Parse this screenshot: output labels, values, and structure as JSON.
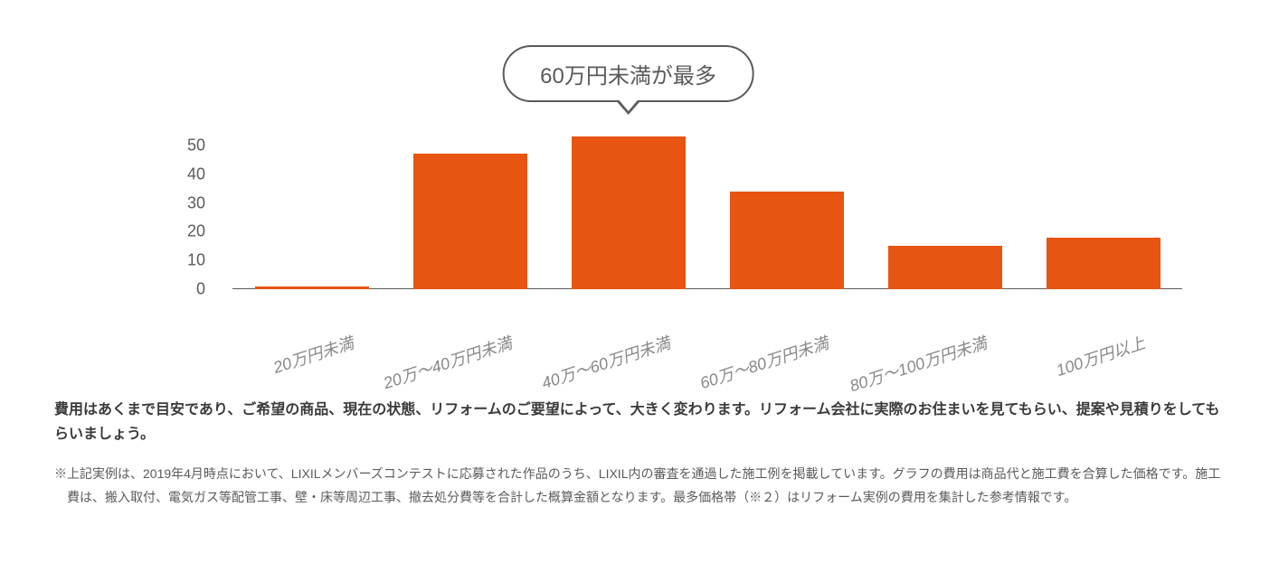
{
  "chart": {
    "type": "bar",
    "callout_text": "60万円未満が最多",
    "callout_bar_index": 2,
    "categories": [
      "20万円未満",
      "20万～40万円未満",
      "40万～60万円未満",
      "60万～80万円未満",
      "80万～100万円未満",
      "100万円以上"
    ],
    "values": [
      1,
      47,
      53,
      34,
      15,
      18
    ],
    "bar_color": "#e85412",
    "ylim": [
      0,
      55
    ],
    "yticks": [
      0,
      10,
      20,
      30,
      40,
      50
    ],
    "ytick_color": "#5a5a5a",
    "ytick_fontsize": 18,
    "xlabel_color": "#888888",
    "xlabel_fontsize": 18,
    "xlabel_rotation": -18,
    "grid_show_baseline_only": true,
    "baseline_color": "#5a5a5a",
    "background_color": "#ffffff",
    "bar_width_ratio": 0.72
  },
  "description": {
    "bold_text": "費用はあくまで目安であり、ご希望の商品、現在の状態、リフォームのご要望によって、大きく変わります。リフォーム会社に実際のお住まいを見てもらい、提案や見積りをしてもらいましょう。",
    "note_text": "※上記実例は、2019年4月時点において、LIXILメンバーズコンテストに応募された作品のうち、LIXIL内の審査を通過した施工例を掲載しています。グラフの費用は商品代と施工費を合算した価格です。施工費は、搬入取付、電気ガス等配管工事、壁・床等周辺工事、撤去処分費等を合計した概算金額となります。最多価格帯（※２）はリフォーム実例の費用を集計した参考情報です。"
  }
}
